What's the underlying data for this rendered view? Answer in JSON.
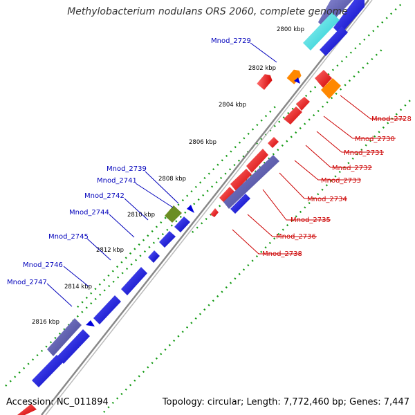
{
  "title": "Methylobacterium nodulans ORS 2060, complete genome",
  "accession_text": "Accession: NC_011894",
  "topology_text": "Topology: circular; Length: 7,772,460 bp; Genes: 7,447",
  "colors": {
    "backbone": "#888888",
    "plus_strand_gene": "#0000dd",
    "minus_strand_gene": "#ee0000",
    "highlight_teal": "#22dddd",
    "highlight_orange": "#ff8800",
    "highlight_olive": "#6b8e23",
    "highlight_slate": "#5555aa",
    "gc_dots": "#119911",
    "label_blue": "#0000bb",
    "label_red": "#cc0000"
  },
  "kbp_ticks": [
    {
      "text": "2800 kbp"
    },
    {
      "text": "2802 kbp"
    },
    {
      "text": "2804 kbp"
    },
    {
      "text": "2806 kbp"
    },
    {
      "text": "2808 kbp"
    },
    {
      "text": "2810 kbp"
    },
    {
      "text": "2812 kbp"
    },
    {
      "text": "2814 kbp"
    },
    {
      "text": "2816 kbp"
    }
  ],
  "left_labels": [
    {
      "text": "Mnod_2729"
    },
    {
      "text": "Mnod_2739"
    },
    {
      "text": "Mnod_2741"
    },
    {
      "text": "Mnod_2742"
    },
    {
      "text": "Mnod_2744"
    },
    {
      "text": "Mnod_2745"
    },
    {
      "text": "Mnod_2746"
    },
    {
      "text": "Mnod_2747"
    }
  ],
  "right_labels": [
    {
      "text": "Mnod_2728"
    },
    {
      "text": "Mnod_2730"
    },
    {
      "text": "Mnod_2731"
    },
    {
      "text": "Mnod_2732"
    },
    {
      "text": "Mnod_2733"
    },
    {
      "text": "Mnod_2734"
    },
    {
      "text": "Mnod_2735"
    },
    {
      "text": "Mnod_2736"
    },
    {
      "text": "Mnod_2738"
    }
  ]
}
